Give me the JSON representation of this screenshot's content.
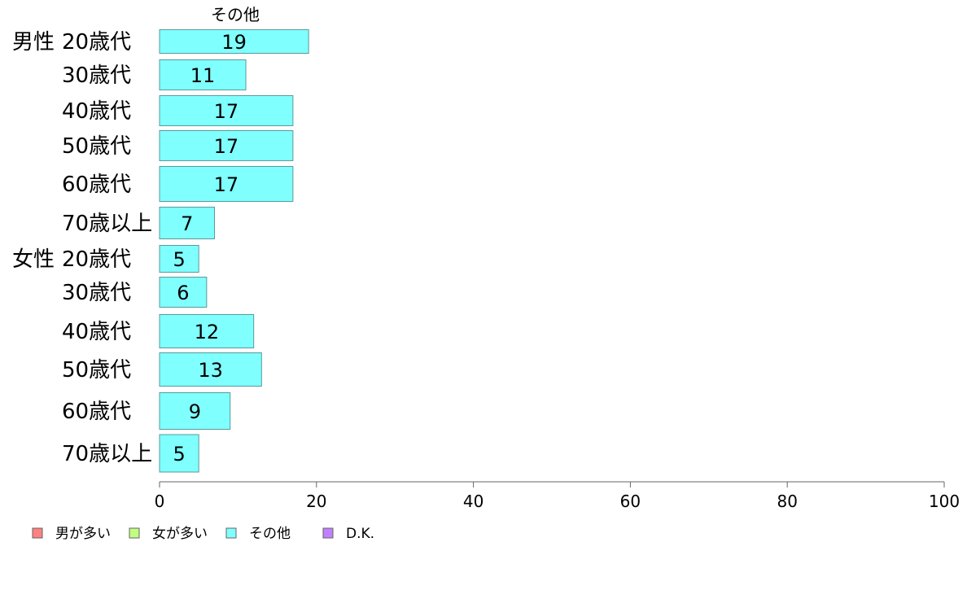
{
  "chart_data": {
    "type": "bar",
    "orientation": "horizontal",
    "series_title": "その他",
    "groups": [
      {
        "label": "男性",
        "start_index": 0
      },
      {
        "label": "女性",
        "start_index": 6
      }
    ],
    "categories": [
      "20歳代",
      "30歳代",
      "40歳代",
      "50歳代",
      "60歳代",
      "70歳以上",
      "20歳代",
      "30歳代",
      "40歳代",
      "50歳代",
      "60歳代",
      "70歳以上"
    ],
    "series": [
      {
        "name": "その他",
        "values": [
          19,
          11,
          17,
          17,
          17,
          7,
          5,
          6,
          12,
          13,
          9,
          5
        ],
        "color": "#80ffff"
      }
    ],
    "xlim": [
      0,
      100
    ],
    "xticks": [
      "0",
      "20",
      "40",
      "60",
      "80",
      "100"
    ],
    "grid": false,
    "legend_position": "bottom-left",
    "legend": [
      {
        "label": "男が多い",
        "color": "#ff8080"
      },
      {
        "label": "女が多い",
        "color": "#c0ff80"
      },
      {
        "label": "その他",
        "color": "#80ffff"
      },
      {
        "label": "D.K.",
        "color": "#c080ff"
      }
    ]
  }
}
